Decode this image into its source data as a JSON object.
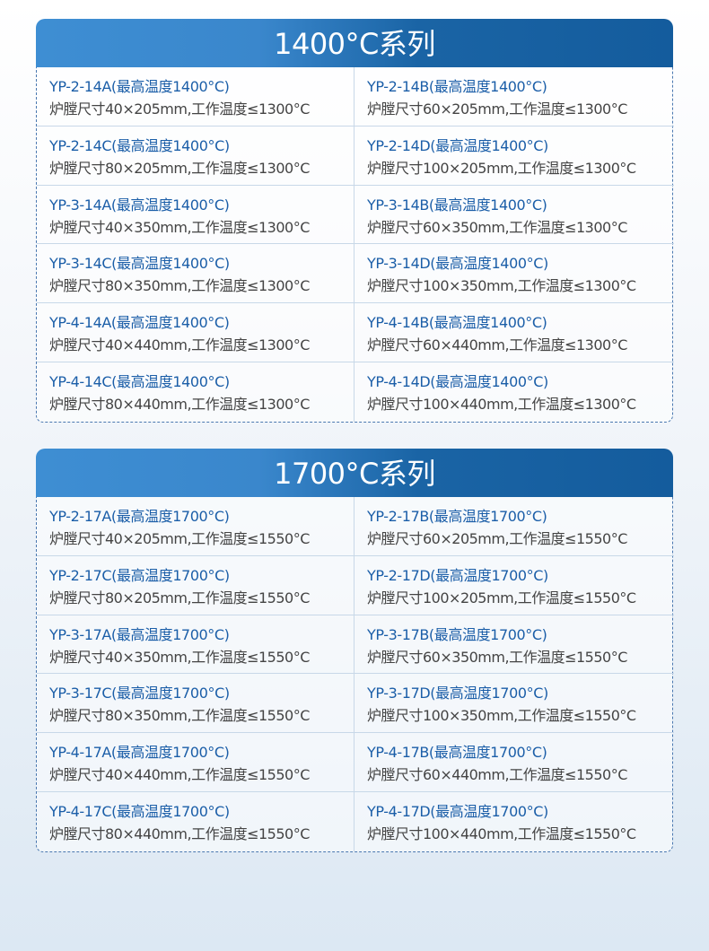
{
  "sections": [
    {
      "title": "1400°C系列",
      "items": [
        {
          "model": "YP-2-14A(最高温度1400°C)",
          "spec": "炉膛尺寸40×205mm,工作温度≤1300°C"
        },
        {
          "model": "YP-2-14B(最高温度1400°C)",
          "spec": "炉膛尺寸60×205mm,工作温度≤1300°C"
        },
        {
          "model": "YP-2-14C(最高温度1400°C)",
          "spec": "炉膛尺寸80×205mm,工作温度≤1300°C"
        },
        {
          "model": "YP-2-14D(最高温度1400°C)",
          "spec": "炉膛尺寸100×205mm,工作温度≤1300°C"
        },
        {
          "model": "YP-3-14A(最高温度1400°C)",
          "spec": "炉膛尺寸40×350mm,工作温度≤1300°C"
        },
        {
          "model": "YP-3-14B(最高温度1400°C)",
          "spec": "炉膛尺寸60×350mm,工作温度≤1300°C"
        },
        {
          "model": "YP-3-14C(最高温度1400°C)",
          "spec": "炉膛尺寸80×350mm,工作温度≤1300°C"
        },
        {
          "model": "YP-3-14D(最高温度1400°C)",
          "spec": "炉膛尺寸100×350mm,工作温度≤1300°C"
        },
        {
          "model": "YP-4-14A(最高温度1400°C)",
          "spec": "炉膛尺寸40×440mm,工作温度≤1300°C"
        },
        {
          "model": "YP-4-14B(最高温度1400°C)",
          "spec": "炉膛尺寸60×440mm,工作温度≤1300°C"
        },
        {
          "model": "YP-4-14C(最高温度1400°C)",
          "spec": "炉膛尺寸80×440mm,工作温度≤1300°C"
        },
        {
          "model": "YP-4-14D(最高温度1400°C)",
          "spec": "炉膛尺寸100×440mm,工作温度≤1300°C"
        }
      ]
    },
    {
      "title": "1700°C系列",
      "items": [
        {
          "model": "YP-2-17A(最高温度1700°C)",
          "spec": "炉膛尺寸40×205mm,工作温度≤1550°C"
        },
        {
          "model": "YP-2-17B(最高温度1700°C)",
          "spec": "炉膛尺寸60×205mm,工作温度≤1550°C"
        },
        {
          "model": "YP-2-17C(最高温度1700°C)",
          "spec": "炉膛尺寸80×205mm,工作温度≤1550°C"
        },
        {
          "model": "YP-2-17D(最高温度1700°C)",
          "spec": "炉膛尺寸100×205mm,工作温度≤1550°C"
        },
        {
          "model": "YP-3-17A(最高温度1700°C)",
          "spec": "炉膛尺寸40×350mm,工作温度≤1550°C"
        },
        {
          "model": "YP-3-17B(最高温度1700°C)",
          "spec": "炉膛尺寸60×350mm,工作温度≤1550°C"
        },
        {
          "model": "YP-3-17C(最高温度1700°C)",
          "spec": "炉膛尺寸80×350mm,工作温度≤1550°C"
        },
        {
          "model": "YP-3-17D(最高温度1700°C)",
          "spec": "炉膛尺寸100×350mm,工作温度≤1550°C"
        },
        {
          "model": "YP-4-17A(最高温度1700°C)",
          "spec": "炉膛尺寸40×440mm,工作温度≤1550°C"
        },
        {
          "model": "YP-4-17B(最高温度1700°C)",
          "spec": "炉膛尺寸60×440mm,工作温度≤1550°C"
        },
        {
          "model": "YP-4-17C(最高温度1700°C)",
          "spec": "炉膛尺寸80×440mm,工作温度≤1550°C"
        },
        {
          "model": "YP-4-17D(最高温度1700°C)",
          "spec": "炉膛尺寸100×440mm,工作温度≤1550°C"
        }
      ]
    }
  ],
  "colors": {
    "header_light": "#3e8ed3",
    "header_dark": "#145c9d",
    "model_text": "#1b5ea8",
    "spec_text": "#444444"
  }
}
